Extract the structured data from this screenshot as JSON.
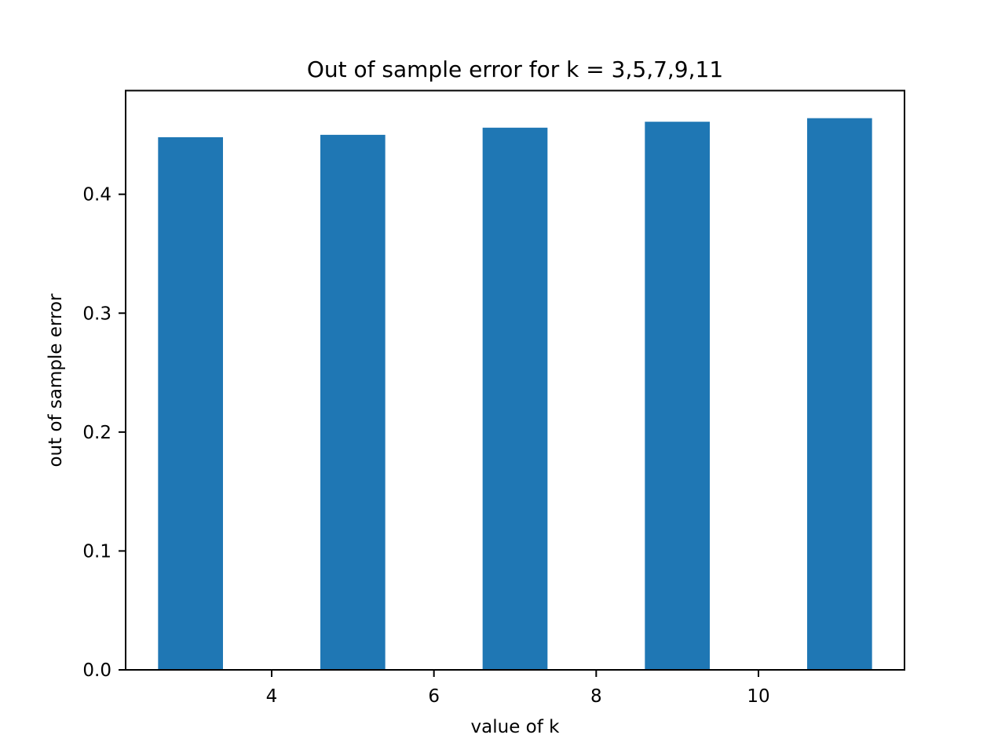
{
  "chart_data": {
    "type": "bar",
    "title": "Out of sample error for k = 3,5,7,9,11",
    "xlabel": "value of k",
    "ylabel": "out of sample error",
    "x": [
      3,
      5,
      7,
      9,
      11
    ],
    "values": [
      0.448,
      0.45,
      0.456,
      0.461,
      0.464
    ],
    "bar_width": 0.8,
    "xlim": [
      2.2,
      11.8
    ],
    "ylim": [
      0,
      0.4872
    ],
    "xticks": [
      4,
      6,
      8,
      10
    ],
    "xtick_labels": [
      "4",
      "6",
      "8",
      "10"
    ],
    "yticks": [
      0.0,
      0.1,
      0.2,
      0.3,
      0.4
    ],
    "ytick_labels": [
      "0.0",
      "0.1",
      "0.2",
      "0.3",
      "0.4"
    ],
    "grid": false,
    "legend": "none",
    "color": "#1f77b4"
  }
}
